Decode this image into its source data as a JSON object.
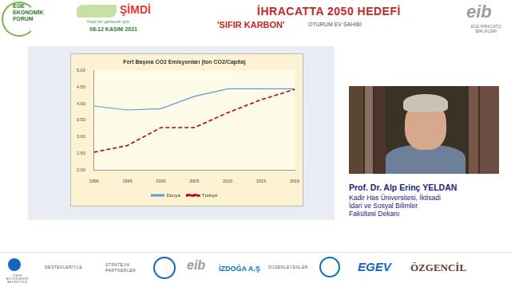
{
  "header": {
    "forum": [
      "EGE",
      "EKONOMİK",
      "FORUM"
    ],
    "event": "ŞİMDİ",
    "tagline": "Yeşil bir gelecek için",
    "dates": "08-12 KASIM 2021",
    "title": "İHRACATTA 2050 HEDEFİ",
    "subtitle": "'SIFIR KARBON'",
    "host_label": "OTURUM EV SAHİBİ",
    "host_logo": "eib",
    "host_name": "EGE İHRACATÇI BİRLİKLERİ"
  },
  "speaker": {
    "name": "Prof. Dr. Alp Erinç YELDAN",
    "affiliation": [
      "Kadir Has Üniversitesi, İktisadi",
      "İdari ve Sosyal Bilimler",
      "Fakültesi Dekanı"
    ]
  },
  "footer": {
    "municipality": "İZMİR BÜYÜKŞEHİR BELEDİYESİ",
    "supporters_label": "DESTEKLERİYLE",
    "partners_label": "STRATEJİK PARTNERLER",
    "partners": [
      "eib",
      "İZDOĞA A.Ş"
    ],
    "organizers_label": "DÜZENLEYENLER",
    "organizers": [
      "EGEV",
      "ÖZGENCİL"
    ]
  },
  "chart_data": {
    "type": "line",
    "title": "Fert Başına CO2 Emisyonları (ton CO2/Capita)",
    "categories": [
      "1990",
      "1995",
      "2000",
      "2005",
      "2010",
      "2015",
      "2019"
    ],
    "series": [
      {
        "name": "Dünya",
        "color": "#5b9bd5",
        "line_style": "solid",
        "marker": "none",
        "values": [
          3.93,
          3.81,
          3.85,
          4.22,
          4.45,
          4.45,
          4.45
        ]
      },
      {
        "name": "Türkiye",
        "color": "#c00000",
        "line_style": "dashed",
        "marker": "none",
        "values": [
          2.54,
          2.74,
          3.28,
          3.28,
          3.73,
          4.12,
          4.43
        ]
      }
    ],
    "ylim": [
      2,
      5
    ],
    "yticks": [
      {
        "value": 2,
        "label": "2.00"
      },
      {
        "value": 2.5,
        "label": "2.50"
      },
      {
        "value": 3,
        "label": "3.00"
      },
      {
        "value": 3.5,
        "label": "3.50"
      },
      {
        "value": 4,
        "label": "4.00"
      },
      {
        "value": 4.5,
        "label": "4.50"
      },
      {
        "value": 5,
        "label": "5.00"
      }
    ],
    "grid": false,
    "legend": "bottom"
  }
}
